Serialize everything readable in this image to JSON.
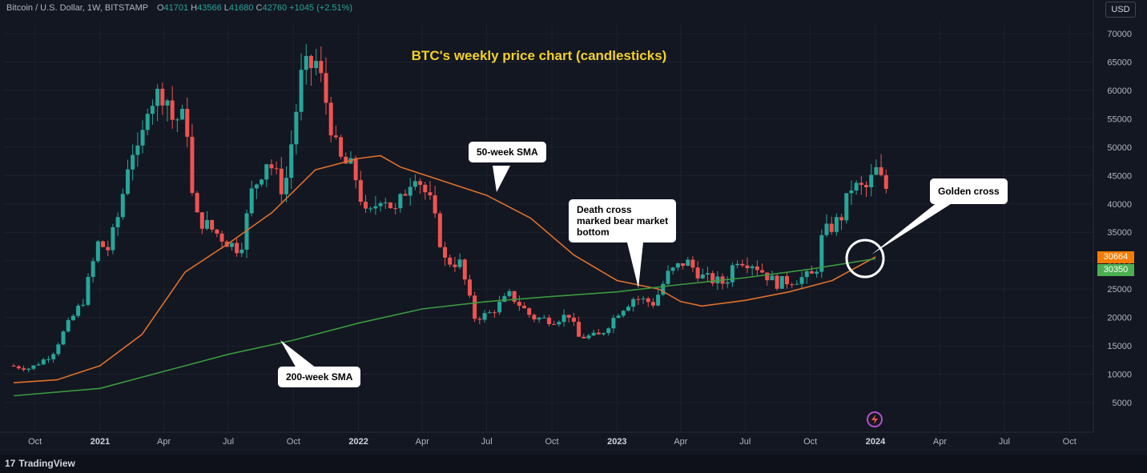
{
  "header": {
    "symbol": "Bitcoin / U.S. Dollar, 1W, BITSTAMP",
    "open_label": "O",
    "open": "41701",
    "high_label": "H",
    "high": "43566",
    "low_label": "L",
    "low": "41680",
    "close_label": "C",
    "close": "42760",
    "change": "+1045 (+2.51%)"
  },
  "currency_button": "USD",
  "branding": "TradingView",
  "colors": {
    "background": "#131722",
    "bull": "#26a69a",
    "bear": "#ef5350",
    "sma50": "#e0702a",
    "sma200": "#3a9a3f",
    "title": "#f2d02b"
  },
  "annotations": {
    "sma50": "50-week SMA",
    "sma200": "200-week SMA",
    "death_cross": [
      "Death cross",
      "marked bear market",
      "bottom"
    ],
    "golden_cross": "Golden cross"
  },
  "price_tags": [
    {
      "value": "30664",
      "color": "#f57c00"
    },
    {
      "value": "30350",
      "color": "#4caf50"
    }
  ],
  "chart_data": {
    "type": "candlestick",
    "title": "BTC's weekly price chart (candlesticks)",
    "xlabel": "",
    "ylabel": "",
    "ylim": [
      0,
      72000
    ],
    "y_ticks": [
      5000,
      10000,
      15000,
      20000,
      25000,
      30000,
      35000,
      40000,
      45000,
      50000,
      55000,
      60000,
      65000,
      70000
    ],
    "x_ticks": [
      "Oct",
      "2021",
      "Apr",
      "Jul",
      "Oct",
      "2022",
      "Apr",
      "Jul",
      "Oct",
      "2023",
      "Apr",
      "Jul",
      "Oct",
      "2024",
      "Apr",
      "Jul",
      "Oct"
    ],
    "x_tick_dates": [
      "2020-10",
      "2021-01",
      "2021-04",
      "2021-07",
      "2021-10",
      "2022-01",
      "2022-04",
      "2022-07",
      "2022-10",
      "2023-01",
      "2023-04",
      "2023-07",
      "2023-10",
      "2024-01",
      "2024-04",
      "2024-07",
      "2024-10"
    ],
    "price_path": [
      [
        "2020-09-01",
        11500
      ],
      [
        "2020-10-01",
        11000
      ],
      [
        "2020-11-01",
        13500
      ],
      [
        "2020-11-20",
        18000
      ],
      [
        "2020-12-15",
        23000
      ],
      [
        "2021-01-05",
        33000
      ],
      [
        "2021-01-20",
        32000
      ],
      [
        "2021-02-05",
        39000
      ],
      [
        "2021-02-20",
        50000
      ],
      [
        "2021-03-05",
        48000
      ],
      [
        "2021-03-15",
        58000
      ],
      [
        "2021-04-10",
        60000
      ],
      [
        "2021-04-20",
        55000
      ],
      [
        "2021-05-10",
        55000
      ],
      [
        "2021-05-20",
        38000
      ],
      [
        "2021-06-10",
        36000
      ],
      [
        "2021-07-10",
        33000
      ],
      [
        "2021-07-25",
        32000
      ],
      [
        "2021-08-10",
        42000
      ],
      [
        "2021-09-01",
        48000
      ],
      [
        "2021-09-25",
        42000
      ],
      [
        "2021-10-10",
        55000
      ],
      [
        "2021-10-20",
        63000
      ],
      [
        "2021-11-10",
        65000
      ],
      [
        "2021-11-25",
        57000
      ],
      [
        "2021-12-10",
        48000
      ],
      [
        "2022-01-01",
        46000
      ],
      [
        "2022-01-20",
        37000
      ],
      [
        "2022-02-10",
        42000
      ],
      [
        "2022-03-01",
        38500
      ],
      [
        "2022-03-28",
        46000
      ],
      [
        "2022-04-20",
        40000
      ],
      [
        "2022-05-10",
        30000
      ],
      [
        "2022-06-01",
        29500
      ],
      [
        "2022-06-20",
        20000
      ],
      [
        "2022-07-10",
        20500
      ],
      [
        "2022-08-10",
        24000
      ],
      [
        "2022-09-10",
        20000
      ],
      [
        "2022-10-10",
        19500
      ],
      [
        "2022-11-01",
        20500
      ],
      [
        "2022-11-15",
        16500
      ],
      [
        "2022-12-15",
        16800
      ],
      [
        "2023-01-10",
        21000
      ],
      [
        "2023-02-01",
        23500
      ],
      [
        "2023-03-01",
        22500
      ],
      [
        "2023-03-20",
        27500
      ],
      [
        "2023-04-15",
        30000
      ],
      [
        "2023-05-10",
        27000
      ],
      [
        "2023-06-10",
        26000
      ],
      [
        "2023-06-25",
        30500
      ],
      [
        "2023-07-20",
        29500
      ],
      [
        "2023-08-20",
        26000
      ],
      [
        "2023-09-20",
        26800
      ],
      [
        "2023-10-15",
        27500
      ],
      [
        "2023-10-25",
        34500
      ],
      [
        "2023-11-20",
        37500
      ],
      [
        "2023-12-05",
        43000
      ],
      [
        "2023-12-25",
        42500
      ],
      [
        "2024-01-10",
        46000
      ],
      [
        "2024-01-20",
        42760
      ]
    ],
    "series": [
      {
        "name": "50-week SMA",
        "points": [
          [
            "2020-09-01",
            8500
          ],
          [
            "2020-11-01",
            9000
          ],
          [
            "2021-01-01",
            11500
          ],
          [
            "2021-03-01",
            17000
          ],
          [
            "2021-05-01",
            28000
          ],
          [
            "2021-07-01",
            33000
          ],
          [
            "2021-09-01",
            38500
          ],
          [
            "2021-11-01",
            46000
          ],
          [
            "2022-01-01",
            48000
          ],
          [
            "2022-02-01",
            48500
          ],
          [
            "2022-03-01",
            46500
          ],
          [
            "2022-05-01",
            44000
          ],
          [
            "2022-07-01",
            41500
          ],
          [
            "2022-09-01",
            37500
          ],
          [
            "2022-11-01",
            31000
          ],
          [
            "2023-01-01",
            26500
          ],
          [
            "2023-03-01",
            25000
          ],
          [
            "2023-04-01",
            22800
          ],
          [
            "2023-05-01",
            22000
          ],
          [
            "2023-07-01",
            23000
          ],
          [
            "2023-09-01",
            24500
          ],
          [
            "2023-11-01",
            26500
          ],
          [
            "2024-01-01",
            30664
          ]
        ]
      },
      {
        "name": "200-week SMA",
        "points": [
          [
            "2020-09-01",
            6200
          ],
          [
            "2021-01-01",
            7500
          ],
          [
            "2021-04-01",
            10500
          ],
          [
            "2021-07-01",
            13500
          ],
          [
            "2021-10-01",
            16000
          ],
          [
            "2022-01-01",
            19000
          ],
          [
            "2022-04-01",
            21500
          ],
          [
            "2022-07-01",
            22800
          ],
          [
            "2022-10-01",
            23700
          ],
          [
            "2023-01-01",
            24500
          ],
          [
            "2023-04-01",
            25800
          ],
          [
            "2023-07-01",
            27000
          ],
          [
            "2023-10-01",
            28500
          ],
          [
            "2024-01-01",
            30350
          ]
        ]
      }
    ]
  }
}
